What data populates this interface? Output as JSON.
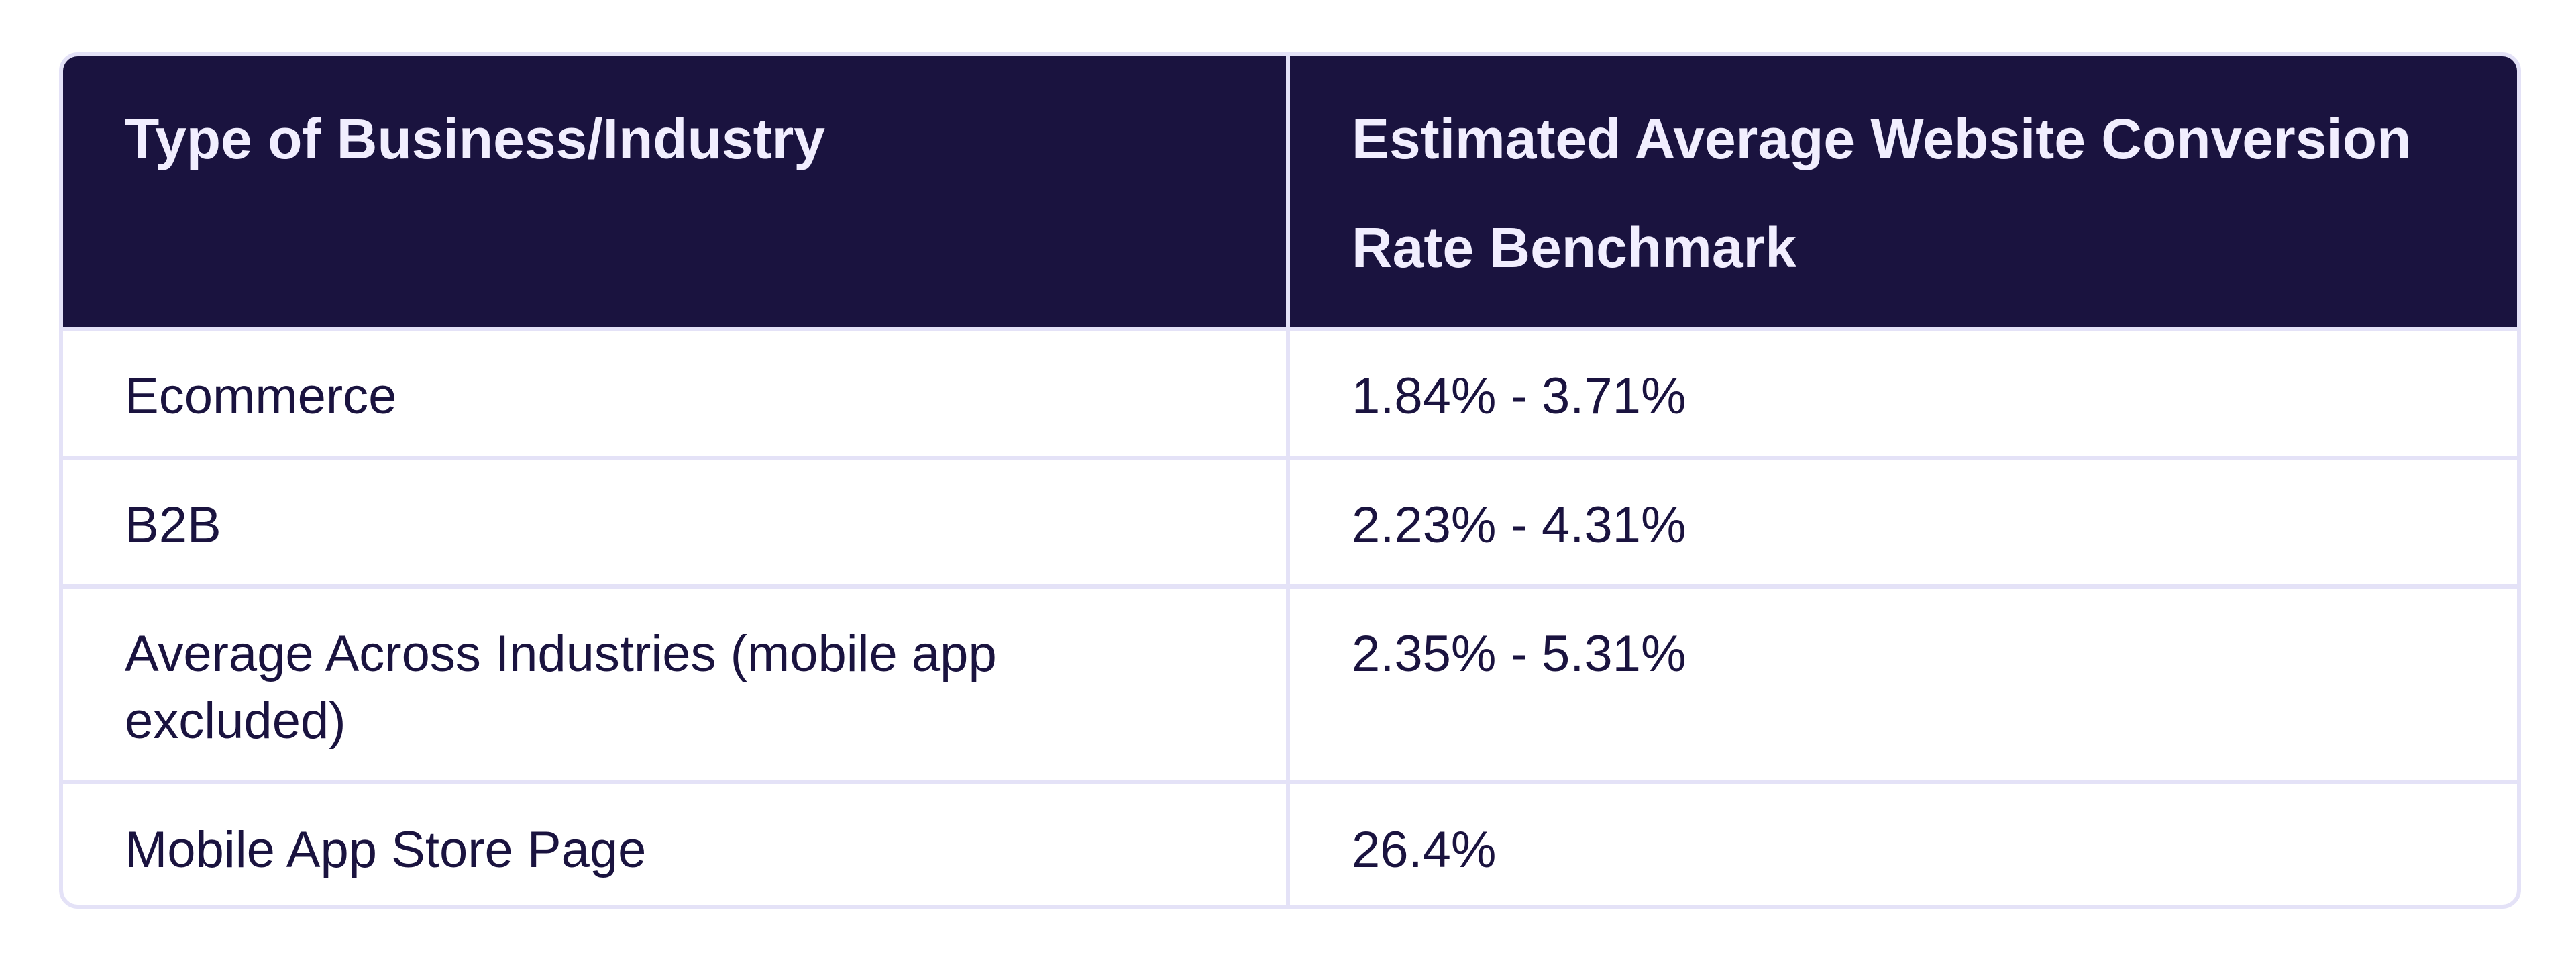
{
  "table": {
    "headers": [
      "Type of Business/Industry",
      "Estimated Average Website Conversion Rate Benchmark"
    ],
    "rows": [
      {
        "industry": "Ecommerce",
        "rate": "1.84% - 3.71%"
      },
      {
        "industry": "B2B",
        "rate": "2.23% - 4.31%"
      },
      {
        "industry": "Average Across Industries (mobile app excluded)",
        "rate": "2.35% - 5.31%"
      },
      {
        "industry": "Mobile App Store Page",
        "rate": "26.4%"
      }
    ]
  },
  "colors": {
    "header_background": "#1a133f",
    "header_text": "#f1eefe",
    "body_text": "#1a133f",
    "border": "#e4e2f7"
  }
}
